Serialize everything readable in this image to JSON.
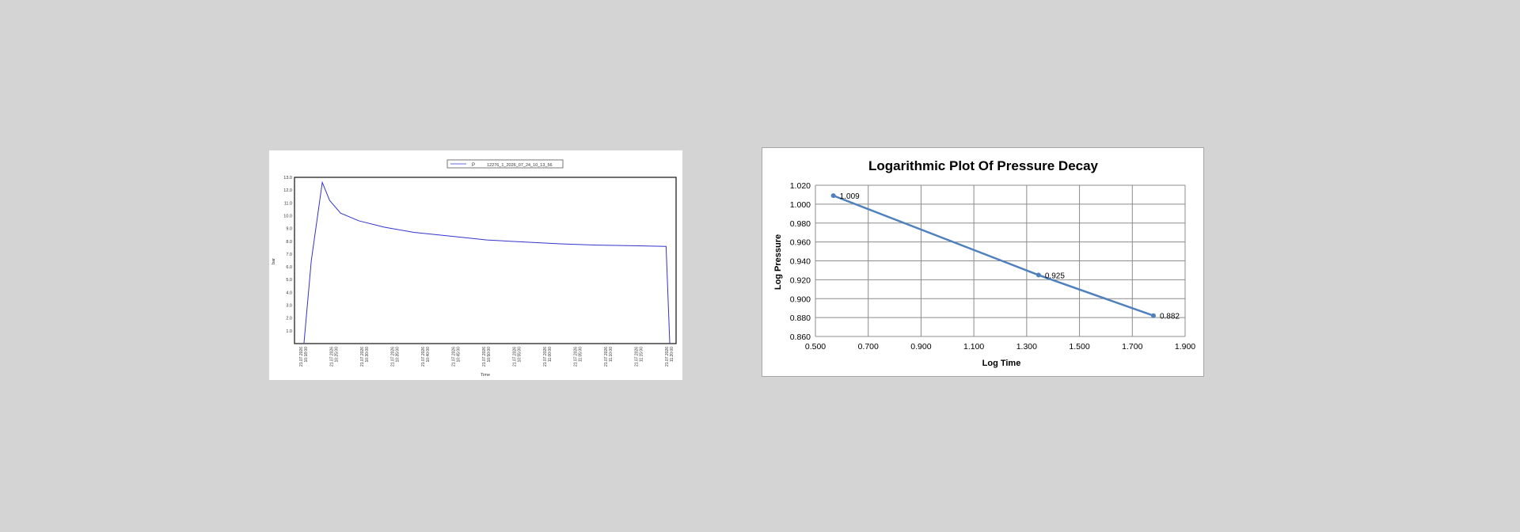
{
  "colors": {
    "background": "#d4d4d4",
    "left_line": "#3333cc",
    "right_line": "#4f81bd",
    "grid": "#8c8c8c"
  },
  "chart_data": [
    {
      "type": "line",
      "legend": {
        "series_name": "P",
        "series_file": "12276_1_2026_07_24_10_13_56"
      },
      "xlabel": "Time",
      "ylabel": "bar",
      "ylim": [
        0,
        13
      ],
      "yticks": [
        "1.0",
        "2.0",
        "3.0",
        "4.0",
        "5.0",
        "6.0",
        "7.0",
        "8.0",
        "9.0",
        "10.0",
        "11.0",
        "12.0",
        "13.0"
      ],
      "xticks": [
        "21.07.2026 10:18:00",
        "21.07.2026 10:25:00",
        "21.07.2026 10:30:00",
        "21.07.2026 10:35:00",
        "21.07.2026 10:40:00",
        "21.07.2026 10:45:00",
        "21.07.2026 10:50:00",
        "21.07.2026 10:55:00",
        "21.07.2026 11:00:00",
        "21.07.2026 11:05:00",
        "21.07.2026 11:10:00",
        "21.07.2026 11:15:00",
        "21.07.2026 11:20:00"
      ],
      "series": [
        {
          "values_by_tick_fraction": [
            [
              0,
              0.05
            ],
            [
              0.02,
              6.5
            ],
            [
              0.05,
              12.6
            ],
            [
              0.07,
              11.2
            ],
            [
              0.1,
              10.2
            ],
            [
              0.15,
              9.6
            ],
            [
              0.22,
              9.1
            ],
            [
              0.3,
              8.7
            ],
            [
              0.4,
              8.4
            ],
            [
              0.5,
              8.1
            ],
            [
              0.6,
              7.95
            ],
            [
              0.7,
              7.8
            ],
            [
              0.8,
              7.7
            ],
            [
              0.9,
              7.65
            ],
            [
              0.99,
              7.6
            ],
            [
              1.0,
              0.05
            ]
          ]
        }
      ]
    },
    {
      "type": "line",
      "title": "Logarithmic Plot Of Pressure Decay",
      "xlabel": "Log Time",
      "ylabel": "Log Pressure",
      "xlim": [
        0.5,
        1.9
      ],
      "ylim": [
        0.86,
        1.02
      ],
      "xticks": [
        "0.500",
        "0.700",
        "0.900",
        "1.100",
        "1.300",
        "1.500",
        "1.700",
        "1.900"
      ],
      "yticks": [
        "0.860",
        "0.880",
        "0.900",
        "0.920",
        "0.940",
        "0.960",
        "0.980",
        "1.000",
        "1.020"
      ],
      "grid": true,
      "series": [
        {
          "x": [
            0.568,
            1.345,
            1.78
          ],
          "y": [
            1.009,
            0.925,
            0.882
          ],
          "labels": [
            "1.009",
            "0.925",
            "0.882"
          ]
        }
      ]
    }
  ]
}
